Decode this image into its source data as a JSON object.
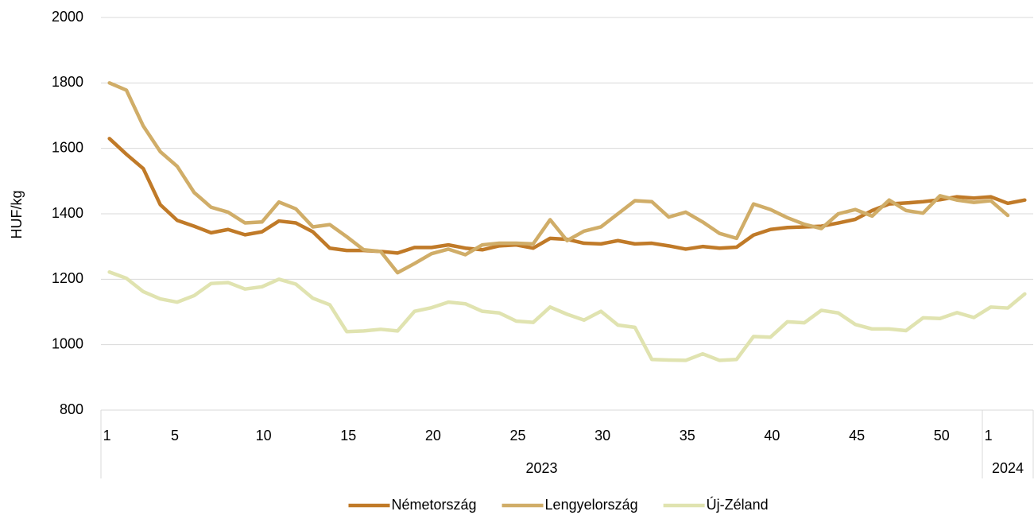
{
  "chart_data": {
    "type": "line",
    "y_axis_label": "HUF/kg",
    "categories": [
      1,
      null,
      null,
      null,
      5,
      null,
      null,
      null,
      null,
      10,
      null,
      null,
      null,
      null,
      15,
      null,
      null,
      null,
      null,
      20,
      null,
      null,
      null,
      null,
      25,
      null,
      null,
      null,
      null,
      30,
      null,
      null,
      null,
      null,
      35,
      null,
      null,
      null,
      null,
      40,
      null,
      null,
      null,
      null,
      45,
      null,
      null,
      null,
      null,
      50,
      null,
      null,
      1,
      null,
      null
    ],
    "groups": [
      {
        "label": "2023",
        "count": 52
      },
      {
        "label": "2024",
        "count": 3
      }
    ],
    "series": [
      {
        "name": "Németország",
        "color": "#c07a28",
        "values": [
          1630,
          1582,
          1538,
          1428,
          1380,
          1362,
          1342,
          1352,
          1336,
          1345,
          1378,
          1372,
          1345,
          1295,
          1288,
          1288,
          1285,
          1280,
          1297,
          1297,
          1305,
          1295,
          1290,
          1302,
          1305,
          1295,
          1325,
          1322,
          1310,
          1308,
          1318,
          1308,
          1310,
          1302,
          1292,
          1300,
          1295,
          1298,
          1335,
          1352,
          1358,
          1360,
          1362,
          1372,
          1383,
          1410,
          1430,
          1433,
          1437,
          1443,
          1452,
          1448,
          1452,
          1432,
          1442
        ]
      },
      {
        "name": "Lengyelország",
        "color": "#d0ad68",
        "values": [
          1800,
          1778,
          1668,
          1590,
          1545,
          1465,
          1420,
          1405,
          1372,
          1375,
          1436,
          1415,
          1360,
          1367,
          1330,
          1290,
          1285,
          1220,
          1248,
          1278,
          1292,
          1275,
          1305,
          1310,
          1310,
          1308,
          1382,
          1318,
          1347,
          1360,
          1400,
          1440,
          1437,
          1390,
          1405,
          1375,
          1340,
          1325,
          1430,
          1413,
          1388,
          1368,
          1355,
          1400,
          1413,
          1393,
          1442,
          1410,
          1402,
          1455,
          1442,
          1435,
          1440,
          1395,
          null
        ]
      },
      {
        "name": "Új-Zéland",
        "color": "#e0e3b0",
        "values": [
          1222,
          1203,
          1162,
          1140,
          1130,
          1150,
          1187,
          1190,
          1170,
          1177,
          1200,
          1185,
          1142,
          1122,
          1040,
          1042,
          1047,
          1042,
          1102,
          1113,
          1130,
          1125,
          1102,
          1097,
          1072,
          1068,
          1115,
          1093,
          1075,
          1102,
          1060,
          1053,
          955,
          953,
          952,
          972,
          952,
          955,
          1025,
          1023,
          1070,
          1067,
          1105,
          1097,
          1062,
          1048,
          1048,
          1043,
          1082,
          1080,
          1098,
          1083,
          1115,
          1112,
          1155
        ]
      }
    ],
    "ylim": [
      800,
      2000
    ],
    "yticks": [
      800,
      1000,
      1200,
      1400,
      1600,
      1800,
      2000
    ],
    "grid": true,
    "legend": "bottom"
  }
}
